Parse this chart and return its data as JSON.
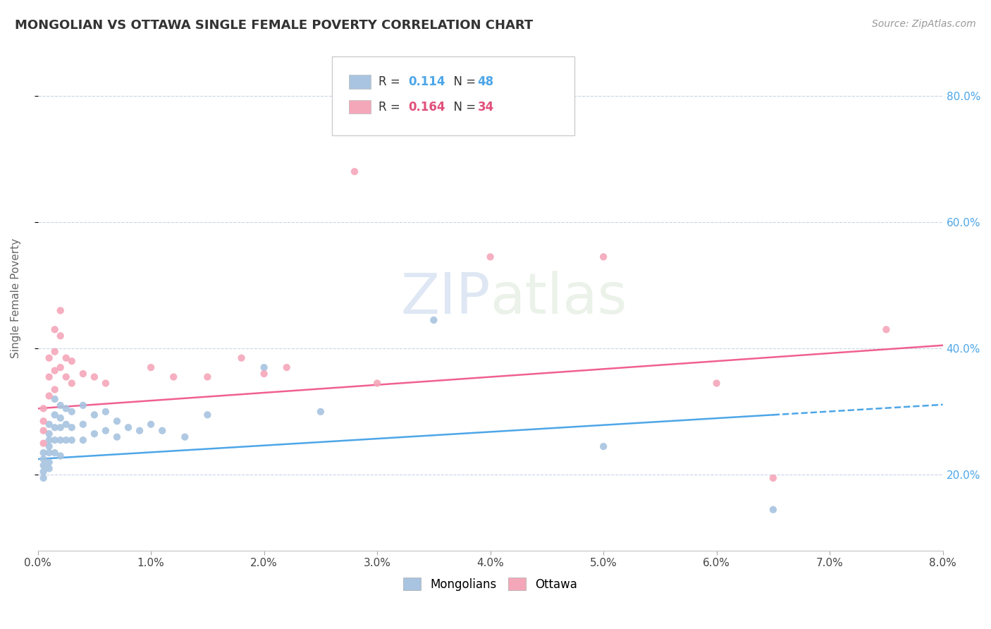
{
  "title": "MONGOLIAN VS OTTAWA SINGLE FEMALE POVERTY CORRELATION CHART",
  "source_text": "Source: ZipAtlas.com",
  "ylabel": "Single Female Poverty",
  "xlim": [
    0.0,
    0.08
  ],
  "ylim": [
    0.08,
    0.88
  ],
  "xtick_labels": [
    "0.0%",
    "1.0%",
    "2.0%",
    "3.0%",
    "4.0%",
    "5.0%",
    "6.0%",
    "7.0%",
    "8.0%"
  ],
  "xtick_vals": [
    0.0,
    0.01,
    0.02,
    0.03,
    0.04,
    0.05,
    0.06,
    0.07,
    0.08
  ],
  "ytick_labels": [
    "20.0%",
    "40.0%",
    "60.0%",
    "80.0%"
  ],
  "ytick_vals": [
    0.2,
    0.4,
    0.6,
    0.8
  ],
  "mongolian_R": 0.114,
  "mongolian_N": 48,
  "ottawa_R": 0.164,
  "ottawa_N": 34,
  "mongolian_color": "#a8c4e0",
  "ottawa_color": "#f4a7b9",
  "trend_mongolian_color": "#4da6e8",
  "trend_ottawa_color": "#f06090",
  "background_color": "#ffffff",
  "grid_color": "#c8d4e8",
  "watermark": "ZIPatlas",
  "mongolian_trend_x0": 0.0,
  "mongolian_trend_y0": 0.225,
  "mongolian_trend_x1": 0.065,
  "mongolian_trend_y1": 0.295,
  "mongolian_trend_solid_end": 0.065,
  "mongolian_trend_dash_start": 0.065,
  "mongolian_trend_dash_end": 0.08,
  "ottawa_trend_x0": 0.0,
  "ottawa_trend_y0": 0.305,
  "ottawa_trend_x1": 0.08,
  "ottawa_trend_y1": 0.405,
  "mongolian_x": [
    0.0005,
    0.0005,
    0.0005,
    0.0005,
    0.0005,
    0.001,
    0.001,
    0.001,
    0.001,
    0.001,
    0.001,
    0.001,
    0.0015,
    0.0015,
    0.0015,
    0.0015,
    0.0015,
    0.002,
    0.002,
    0.002,
    0.002,
    0.002,
    0.0025,
    0.0025,
    0.0025,
    0.003,
    0.003,
    0.003,
    0.004,
    0.004,
    0.004,
    0.005,
    0.005,
    0.006,
    0.006,
    0.007,
    0.007,
    0.008,
    0.009,
    0.01,
    0.011,
    0.013,
    0.015,
    0.02,
    0.025,
    0.035,
    0.05,
    0.065
  ],
  "mongolian_y": [
    0.235,
    0.225,
    0.215,
    0.205,
    0.195,
    0.28,
    0.265,
    0.255,
    0.245,
    0.235,
    0.22,
    0.21,
    0.32,
    0.295,
    0.275,
    0.255,
    0.235,
    0.31,
    0.29,
    0.275,
    0.255,
    0.23,
    0.305,
    0.28,
    0.255,
    0.3,
    0.275,
    0.255,
    0.31,
    0.28,
    0.255,
    0.295,
    0.265,
    0.3,
    0.27,
    0.285,
    0.26,
    0.275,
    0.27,
    0.28,
    0.27,
    0.26,
    0.295,
    0.37,
    0.3,
    0.445,
    0.245,
    0.145
  ],
  "ottawa_x": [
    0.0005,
    0.0005,
    0.0005,
    0.0005,
    0.001,
    0.001,
    0.001,
    0.0015,
    0.0015,
    0.0015,
    0.0015,
    0.002,
    0.002,
    0.002,
    0.0025,
    0.0025,
    0.003,
    0.003,
    0.004,
    0.005,
    0.006,
    0.01,
    0.012,
    0.015,
    0.018,
    0.02,
    0.022,
    0.028,
    0.03,
    0.04,
    0.05,
    0.06,
    0.065,
    0.075
  ],
  "ottawa_y": [
    0.305,
    0.285,
    0.27,
    0.25,
    0.385,
    0.355,
    0.325,
    0.43,
    0.395,
    0.365,
    0.335,
    0.46,
    0.42,
    0.37,
    0.385,
    0.355,
    0.38,
    0.345,
    0.36,
    0.355,
    0.345,
    0.37,
    0.355,
    0.355,
    0.385,
    0.36,
    0.37,
    0.68,
    0.345,
    0.545,
    0.545,
    0.345,
    0.195,
    0.43
  ]
}
